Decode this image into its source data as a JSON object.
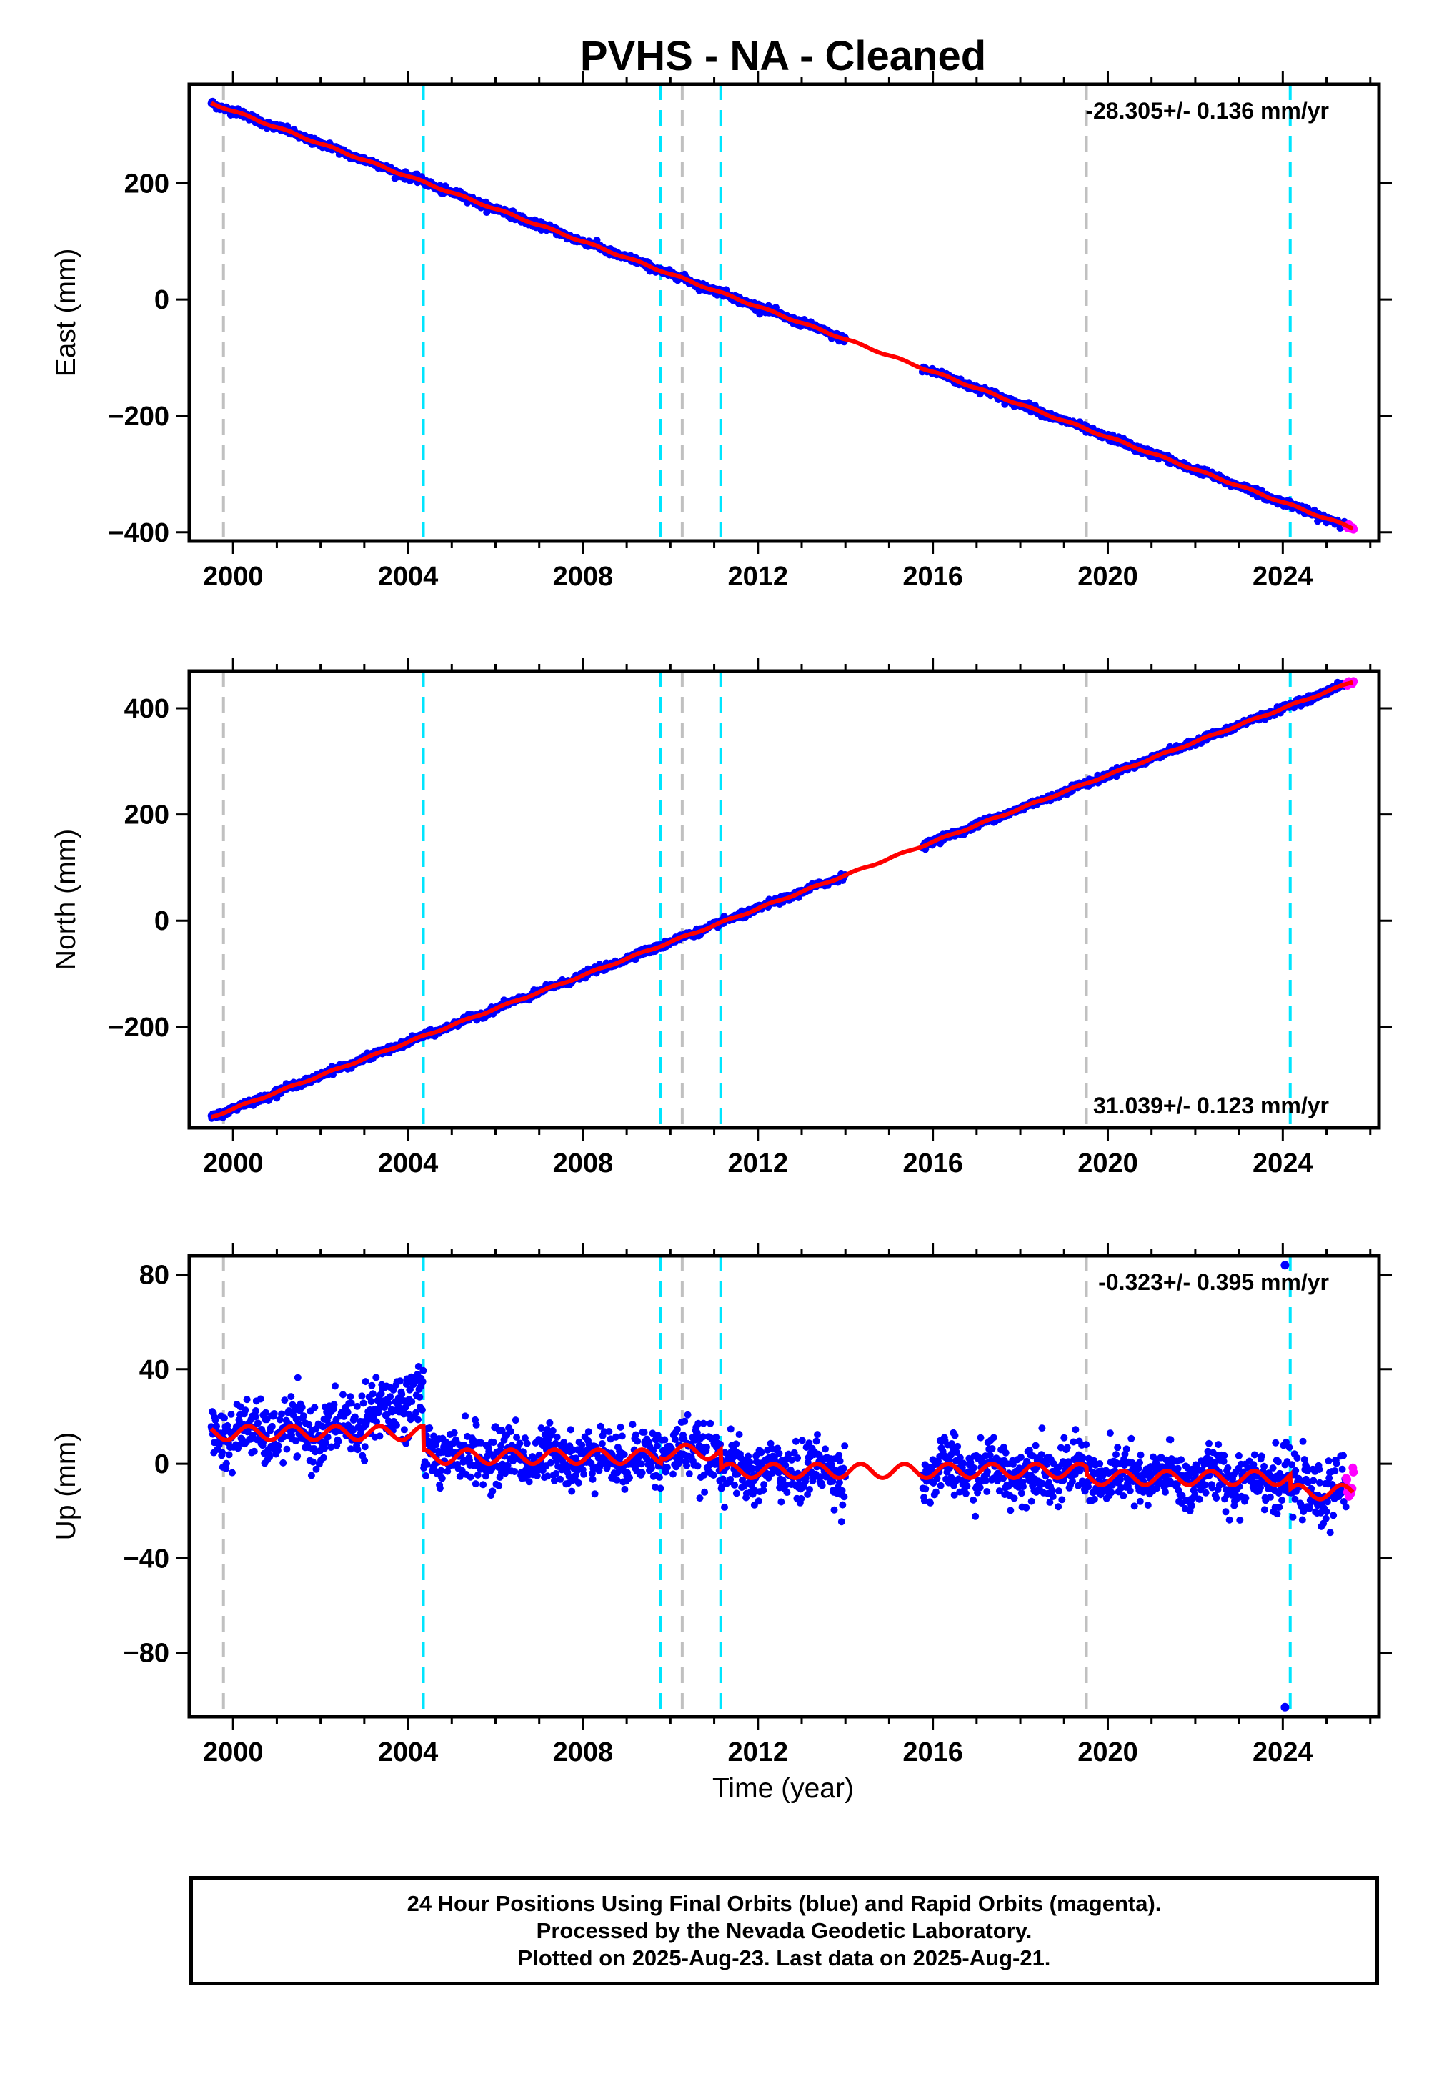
{
  "title": "PVHS  - NA - Cleaned",
  "x_axis_label": "Time (year)",
  "x_ticks": [
    2000,
    2004,
    2008,
    2012,
    2016,
    2020,
    2024
  ],
  "colors": {
    "final_orbits": "#0000ff",
    "rapid_orbits": "#ff00ff",
    "model": "#ff0000",
    "event_cyan": "#00e5ff",
    "event_gray": "#c0c0c0"
  },
  "footer": {
    "line1": "24 Hour Positions Using Final Orbits (blue) and Rapid Orbits (magenta).",
    "line2": "Processed by the Nevada Geodetic Laboratory.",
    "line3": "Plotted on 2025-Aug-23. Last data on 2025-Aug-21."
  },
  "chart_data": [
    {
      "type": "scatter",
      "component": "east",
      "ylabel": "East (mm)",
      "rate_label": "-28.305+/- 0.136 mm/yr",
      "xlim": [
        1999.0,
        2026.2
      ],
      "ylim": [
        -415,
        370
      ],
      "y_ticks": [
        200,
        0,
        -200,
        -400
      ],
      "events_cyan": [
        2004.35,
        2009.78,
        2011.15,
        2024.17
      ],
      "events_gray": [
        1999.78,
        2010.27,
        2019.51
      ],
      "data_gap": [
        2014.0,
        2015.75
      ],
      "trend": {
        "x": [
          1999.5,
          2025.6
        ],
        "y": [
          338,
          -393
        ]
      },
      "rapid_end": {
        "x": 2025.6,
        "y": -393
      },
      "series": [
        {
          "name": "Final Orbits (blue)",
          "noise_mm": 3
        },
        {
          "name": "Rapid Orbits (magenta)"
        }
      ]
    },
    {
      "type": "scatter",
      "component": "north",
      "ylabel": "North (mm)",
      "rate_label": "31.039+/- 0.123 mm/yr",
      "xlim": [
        1999.0,
        2026.2
      ],
      "ylim": [
        -390,
        470
      ],
      "y_ticks": [
        400,
        200,
        0,
        -200
      ],
      "events_cyan": [
        2004.35,
        2009.78,
        2011.15,
        2024.17
      ],
      "events_gray": [
        1999.78,
        2010.27,
        2019.51
      ],
      "data_gap": [
        2014.0,
        2015.75
      ],
      "trend": {
        "x": [
          1999.5,
          2025.6
        ],
        "y": [
          -370,
          450
        ]
      },
      "rapid_end": {
        "x": 2025.6,
        "y": 450
      },
      "series": [
        {
          "name": "Final Orbits (blue)",
          "noise_mm": 3
        },
        {
          "name": "Rapid Orbits (magenta)"
        }
      ]
    },
    {
      "type": "scatter",
      "component": "up",
      "ylabel": "Up (mm)",
      "rate_label": "-0.323+/- 0.395 mm/yr",
      "xlim": [
        1999.0,
        2026.2
      ],
      "ylim": [
        -107,
        88
      ],
      "y_ticks": [
        80,
        40,
        0,
        -40,
        -80
      ],
      "events_cyan": [
        2004.35,
        2009.78,
        2011.15,
        2024.17
      ],
      "events_gray": [
        1999.78,
        2010.27,
        2019.51
      ],
      "data_gap": [
        2014.0,
        2015.75
      ],
      "model_segments": [
        {
          "x": [
            1999.5,
            2004.35
          ],
          "y": [
            13,
            13
          ]
        },
        {
          "x": [
            2004.35,
            2009.78
          ],
          "y": [
            3,
            3
          ]
        },
        {
          "x": [
            2009.78,
            2011.15
          ],
          "y": [
            5,
            5
          ]
        },
        {
          "x": [
            2011.15,
            2019.51
          ],
          "y": [
            -3,
            -3
          ]
        },
        {
          "x": [
            2019.51,
            2024.17
          ],
          "y": [
            -6,
            -6
          ]
        },
        {
          "x": [
            2024.17,
            2025.6
          ],
          "y": [
            -12,
            -12
          ]
        }
      ],
      "seasonal_amplitude_mm": 3,
      "outliers": [
        {
          "x": 2024.05,
          "y": 84
        },
        {
          "x": 2024.05,
          "y": -103
        }
      ],
      "rapid_end": {
        "x": 2025.6,
        "y": -10
      },
      "series": [
        {
          "name": "Final Orbits (blue)",
          "noise_mm": 6
        },
        {
          "name": "Rapid Orbits (magenta)"
        }
      ]
    }
  ]
}
